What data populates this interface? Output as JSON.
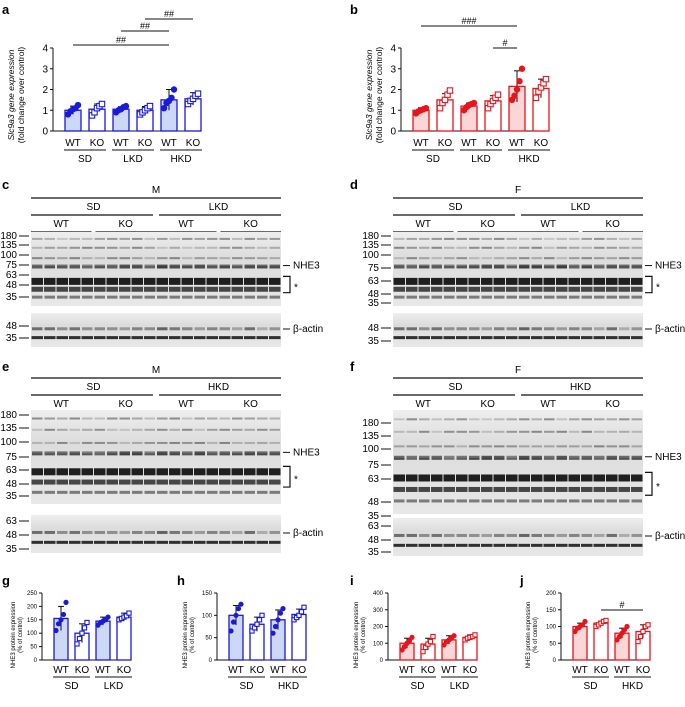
{
  "colors": {
    "blue": "#1a1adb",
    "blue_fill": "#cdd8f6",
    "red": "#e8141c",
    "red_fill": "#fad6d6",
    "ink": "#111111"
  },
  "panels": {
    "a": "a",
    "b": "b",
    "c": "c",
    "d": "d",
    "e": "e",
    "f": "f",
    "g": "g",
    "h": "h",
    "i": "i",
    "j": "j"
  },
  "labels": {
    "gene_ylabel_1": "Slc9a3 gene expression",
    "gene_ylabel_2": "(fold change over control)",
    "protein_ylabel_1": "NHE3 protein expression",
    "protein_ylabel_2": "(% of control)",
    "wt": "WT",
    "ko": "KO",
    "sd": "SD",
    "lkd": "LKD",
    "hkd": "HKD",
    "male": "M",
    "female": "F",
    "nhe3": "NHE3",
    "actin": "β-actin",
    "asterisk": "*"
  },
  "blot_markers": {
    "c_main": [
      "180",
      "135",
      "100",
      "75",
      "63",
      "48",
      "35"
    ],
    "c_actin": [
      "48",
      "35"
    ],
    "d_main": [
      "180",
      "135",
      "100",
      "75",
      "63",
      "48",
      "35"
    ],
    "d_actin": [
      "48",
      "35"
    ],
    "e_main": [
      "180",
      "135",
      "100",
      "75",
      "63",
      "48",
      "35"
    ],
    "e_actin": [
      "63",
      "48",
      "35"
    ],
    "f_main": [
      "180",
      "135",
      "100",
      "75",
      "63",
      "48",
      "35"
    ],
    "f_actin": [
      "63",
      "48",
      "35"
    ]
  },
  "chart_data": [
    {
      "panel": "a",
      "type": "bar",
      "color": "blue",
      "ylabel": "Slc9a3 gene expression (fold change over control)",
      "ylim": [
        0,
        4
      ],
      "yticks": [
        "0",
        "1",
        "2",
        "3",
        "4"
      ],
      "categories": [
        "WT",
        "KO",
        "WT",
        "KO",
        "WT",
        "KO"
      ],
      "groups": [
        "SD",
        "LKD",
        "HKD"
      ],
      "values": [
        1.0,
        1.05,
        1.05,
        1.0,
        1.5,
        1.55
      ],
      "errors": [
        0.2,
        0.25,
        0.12,
        0.18,
        0.5,
        0.3
      ],
      "filled": [
        true,
        false,
        true,
        false,
        true,
        false
      ],
      "points": [
        [
          0.8,
          0.95,
          1.05,
          1.1,
          1.25
        ],
        [
          0.75,
          0.9,
          1.1,
          1.2,
          1.3
        ],
        [
          0.9,
          1.0,
          1.05,
          1.15,
          1.2
        ],
        [
          0.8,
          0.9,
          1.0,
          1.1,
          1.2
        ],
        [
          1.1,
          1.35,
          1.45,
          1.6,
          2.0
        ],
        [
          1.3,
          1.45,
          1.55,
          1.7,
          1.8
        ]
      ],
      "significance": [
        {
          "label": "##",
          "from": 0,
          "to": 4
        },
        {
          "label": "##",
          "from": 2,
          "to": 4
        },
        {
          "label": "##",
          "from": 3,
          "to": 5
        }
      ]
    },
    {
      "panel": "b",
      "type": "bar",
      "color": "red",
      "ylabel": "Slc9a3 gene expression (fold change over control)",
      "ylim": [
        0,
        4
      ],
      "yticks": [
        "0",
        "1",
        "2",
        "3",
        "4"
      ],
      "categories": [
        "WT",
        "KO",
        "WT",
        "KO",
        "WT",
        "KO"
      ],
      "groups": [
        "SD",
        "LKD",
        "HKD"
      ],
      "values": [
        1.0,
        1.5,
        1.2,
        1.45,
        2.15,
        2.05
      ],
      "errors": [
        0.12,
        0.3,
        0.15,
        0.25,
        0.75,
        0.45
      ],
      "filled": [
        true,
        false,
        true,
        false,
        true,
        false
      ],
      "points": [
        [
          0.85,
          0.95,
          1.0,
          1.05,
          1.1
        ],
        [
          1.1,
          1.35,
          1.5,
          1.75,
          1.95
        ],
        [
          1.0,
          1.15,
          1.25,
          1.3,
          1.35
        ],
        [
          1.1,
          1.3,
          1.45,
          1.6,
          1.75
        ],
        [
          1.5,
          1.7,
          2.0,
          2.4,
          3.0
        ],
        [
          1.6,
          1.9,
          2.1,
          2.3,
          2.5
        ]
      ],
      "significance": [
        {
          "label": "###",
          "from": 0,
          "to": 4
        },
        {
          "label": "#",
          "from": 3,
          "to": 4
        }
      ]
    },
    {
      "panel": "g",
      "type": "bar",
      "color": "blue",
      "ylabel": "NHE3 protein expression (% of control)",
      "ylim": [
        0,
        250
      ],
      "yticks": [
        "0",
        "50",
        "100",
        "150",
        "200",
        "250"
      ],
      "categories": [
        "WT",
        "KO",
        "WT",
        "KO"
      ],
      "groups": [
        "SD",
        "LKD"
      ],
      "values": [
        155,
        100,
        145,
        160
      ],
      "errors": [
        45,
        35,
        15,
        15
      ],
      "filled": [
        true,
        false,
        true,
        false
      ],
      "points": [
        [
          110,
          135,
          150,
          170,
          215
        ],
        [
          60,
          80,
          100,
          120,
          140
        ],
        [
          130,
          140,
          145,
          150,
          160
        ],
        [
          150,
          155,
          160,
          165,
          175
        ]
      ],
      "significance": []
    },
    {
      "panel": "h",
      "type": "bar",
      "color": "blue",
      "ylabel": "NHE3 protein expression (% of control)",
      "ylim": [
        0,
        150
      ],
      "yticks": [
        "0",
        "50",
        "100",
        "150"
      ],
      "categories": [
        "WT",
        "KO",
        "WT",
        "KO"
      ],
      "groups": [
        "SD",
        "HKD"
      ],
      "values": [
        100,
        80,
        90,
        102
      ],
      "errors": [
        22,
        16,
        22,
        12
      ],
      "filled": [
        true,
        false,
        true,
        false
      ],
      "points": [
        [
          65,
          85,
          100,
          115,
          125
        ],
        [
          65,
          72,
          80,
          90,
          100
        ],
        [
          60,
          75,
          90,
          105,
          115
        ],
        [
          90,
          95,
          100,
          108,
          118
        ]
      ],
      "significance": []
    },
    {
      "panel": "i",
      "type": "bar",
      "color": "red",
      "ylabel": "NHE3 protein expression (% of control)",
      "ylim": [
        0,
        400
      ],
      "yticks": [
        "0",
        "100",
        "200",
        "300",
        "400"
      ],
      "categories": [
        "WT",
        "KO",
        "WT",
        "KO"
      ],
      "groups": [
        "SD",
        "LKD"
      ],
      "values": [
        100,
        95,
        120,
        135
      ],
      "errors": [
        30,
        35,
        25,
        15
      ],
      "filled": [
        true,
        false,
        true,
        false
      ],
      "points": [
        [
          60,
          80,
          100,
          115,
          135
        ],
        [
          50,
          75,
          95,
          110,
          140
        ],
        [
          90,
          110,
          120,
          130,
          145
        ],
        [
          120,
          130,
          135,
          140,
          150
        ]
      ],
      "significance": []
    },
    {
      "panel": "j",
      "type": "bar",
      "color": "red",
      "ylabel": "NHE3 protein expression (% of control)",
      "ylim": [
        0,
        200
      ],
      "yticks": [
        "0",
        "50",
        "100",
        "150",
        "200"
      ],
      "categories": [
        "WT",
        "KO",
        "WT",
        "KO"
      ],
      "groups": [
        "SD",
        "HKD"
      ],
      "values": [
        100,
        110,
        80,
        85
      ],
      "errors": [
        10,
        6,
        15,
        20
      ],
      "filled": [
        true,
        false,
        true,
        false
      ],
      "points": [
        [
          85,
          95,
          100,
          105,
          115
        ],
        [
          100,
          105,
          110,
          115,
          118
        ],
        [
          60,
          70,
          80,
          90,
          100
        ],
        [
          55,
          70,
          85,
          100,
          105
        ]
      ],
      "significance": [
        {
          "label": "#",
          "from": 1,
          "to": 3
        }
      ]
    }
  ]
}
